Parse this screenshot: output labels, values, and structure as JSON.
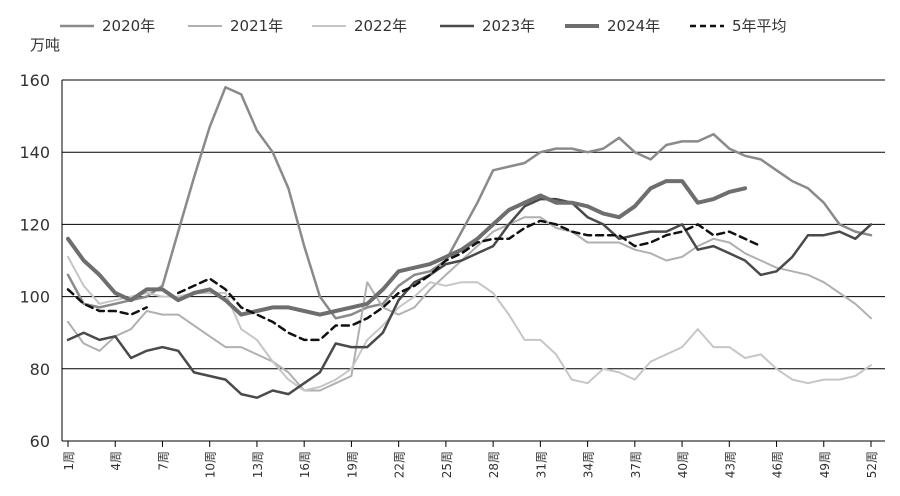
{
  "chart_data": {
    "type": "line",
    "ylabel": "万吨",
    "ylim": [
      60,
      160
    ],
    "yticks": [
      60,
      80,
      100,
      120,
      140,
      160
    ],
    "grid": "horizontal",
    "legend_position": "top",
    "x_ticks": [
      {
        "week": 1,
        "label": "1周"
      },
      {
        "week": 4,
        "label": "4周"
      },
      {
        "week": 7,
        "label": "7周"
      },
      {
        "week": 10,
        "label": "10周"
      },
      {
        "week": 13,
        "label": "13周"
      },
      {
        "week": 16,
        "label": "16周"
      },
      {
        "week": 19,
        "label": "19周"
      },
      {
        "week": 22,
        "label": "22周"
      },
      {
        "week": 25,
        "label": "25周"
      },
      {
        "week": 28,
        "label": "28周"
      },
      {
        "week": 31,
        "label": "31周"
      },
      {
        "week": 34,
        "label": "34周"
      },
      {
        "week": 37,
        "label": "37周"
      },
      {
        "week": 40,
        "label": "40周"
      },
      {
        "week": 43,
        "label": "43周"
      },
      {
        "week": 46,
        "label": "46周"
      },
      {
        "week": 49,
        "label": "49周"
      },
      {
        "week": 52,
        "label": "52周"
      }
    ],
    "series": [
      {
        "name": "2020年",
        "color": "#8a8a8a",
        "width": 2.5,
        "dash": "",
        "start_week": 1,
        "values": [
          106,
          98,
          97,
          98,
          99,
          100,
          103,
          118,
          133,
          147,
          158,
          156,
          146,
          140,
          130,
          114,
          100,
          94,
          95,
          97,
          98,
          103,
          106,
          107,
          110,
          118,
          126,
          135,
          136,
          137,
          140,
          141,
          141,
          140,
          141,
          144,
          140,
          138,
          142,
          143,
          143,
          145,
          141,
          139,
          138,
          135,
          132,
          130,
          126,
          120,
          118,
          117
        ]
      },
      {
        "name": "2021年",
        "color": "#b0b0b0",
        "width": 2,
        "dash": "",
        "start_week": 1,
        "values": [
          93,
          87,
          85,
          89,
          91,
          96,
          95,
          95,
          92,
          89,
          86,
          86,
          84,
          82,
          79,
          74,
          74,
          76,
          78,
          104,
          97,
          95,
          97,
          102,
          106,
          110,
          114,
          118,
          120,
          122,
          122,
          119,
          118,
          115,
          115,
          115,
          113,
          112,
          110,
          111,
          114,
          116,
          115,
          112,
          110,
          108,
          107,
          106,
          104,
          101,
          98,
          94
        ]
      },
      {
        "name": "2022年",
        "color": "#c6c6c6",
        "width": 2,
        "dash": "",
        "start_week": 1,
        "values": [
          111,
          103,
          98,
          99,
          100,
          101,
          100,
          100,
          101,
          101,
          101,
          91,
          88,
          82,
          77,
          74,
          75,
          77,
          80,
          88,
          92,
          97,
          100,
          104,
          103,
          104,
          104,
          101,
          95,
          88,
          88,
          84,
          77,
          76,
          80,
          79,
          77,
          82,
          84,
          86,
          91,
          86,
          86,
          83,
          84,
          80,
          77,
          76,
          77,
          77,
          78,
          81
        ]
      },
      {
        "name": "2023年",
        "color": "#4a4a4a",
        "width": 2.5,
        "dash": "",
        "start_week": 1,
        "values": [
          88,
          90,
          88,
          89,
          83,
          85,
          86,
          85,
          79,
          78,
          77,
          73,
          72,
          74,
          73,
          76,
          79,
          87,
          86,
          86,
          90,
          99,
          104,
          106,
          109,
          110,
          112,
          114,
          120,
          125,
          127,
          127,
          126,
          122,
          120,
          116,
          117,
          118,
          118,
          120,
          113,
          114,
          112,
          110,
          106,
          107,
          111,
          117,
          117,
          118,
          116,
          120
        ]
      },
      {
        "name": "2024年",
        "color": "#6e6e6e",
        "width": 4,
        "dash": "",
        "start_week": 1,
        "values": [
          116,
          110,
          106,
          101,
          99,
          102,
          102,
          99,
          101,
          102,
          99,
          95,
          96,
          97,
          97,
          96,
          95,
          96,
          97,
          98,
          102,
          107,
          108,
          109,
          111,
          113,
          116,
          120,
          124,
          126,
          128,
          126,
          126,
          125,
          123,
          122,
          125,
          130,
          132,
          132,
          126,
          127,
          129,
          130
        ]
      },
      {
        "name": "5年平均",
        "color": "#111111",
        "width": 2.5,
        "dash": "7,5",
        "start_week": 1,
        "values": [
          102,
          98,
          96,
          96,
          95,
          97,
          null,
          101,
          103,
          105,
          102,
          97,
          95,
          93,
          90,
          88,
          88,
          92,
          92,
          94,
          97,
          101,
          103,
          106,
          110,
          112,
          115,
          116,
          116,
          119,
          121,
          120,
          118,
          117,
          117,
          117,
          114,
          115,
          117,
          118,
          120,
          117,
          118,
          116,
          114
        ]
      }
    ]
  }
}
